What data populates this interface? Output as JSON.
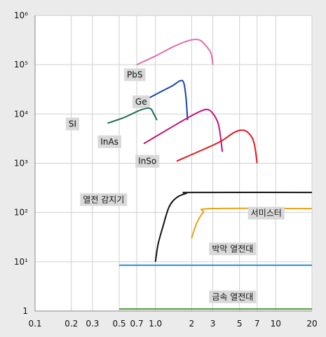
{
  "chart_data": {
    "type": "line",
    "x_scale": "log",
    "y_scale": "log",
    "xlim": [
      0.1,
      20
    ],
    "ylim": [
      1,
      1000000
    ],
    "grid": true,
    "x_tick_values": [
      0.1,
      0.2,
      0.3,
      0.5,
      0.7,
      1.0,
      2,
      3,
      5,
      7,
      10,
      20
    ],
    "x_tick_labels": [
      "0.1",
      "0.2",
      "0.3",
      "0.5",
      "0.7",
      "1.0",
      "2",
      "3",
      "5",
      "7",
      "10",
      "20"
    ],
    "y_tick_values": [
      1,
      10,
      100,
      1000,
      10000,
      100000,
      1000000
    ],
    "y_tick_labels": [
      "1",
      "10¹",
      "10²",
      "10³",
      "10⁴",
      "10⁵",
      "10⁶"
    ],
    "series": [
      {
        "name": "PbS",
        "color": "#dd6fb0",
        "label_x": 0.58,
        "label_y": 55000,
        "points": [
          [
            0.7,
            100000
          ],
          [
            1.0,
            150000
          ],
          [
            1.4,
            230000
          ],
          [
            1.9,
            310000
          ],
          [
            2.3,
            320000
          ],
          [
            2.6,
            250000
          ],
          [
            2.9,
            170000
          ],
          [
            3.0,
            100000
          ]
        ]
      },
      {
        "name": "Ge",
        "color": "#1b44a3",
        "label_x": 0.68,
        "label_y": 15500,
        "points": [
          [
            0.85,
            20000
          ],
          [
            1.1,
            28000
          ],
          [
            1.4,
            38000
          ],
          [
            1.6,
            47000
          ],
          [
            1.72,
            43000
          ],
          [
            1.8,
            20000
          ],
          [
            1.85,
            7500
          ]
        ]
      },
      {
        "name": "SI",
        "color": "#1f6b57",
        "label_x": 0.19,
        "label_y": 5500,
        "points": [
          [
            0.4,
            6500
          ],
          [
            0.55,
            8500
          ],
          [
            0.75,
            12000
          ],
          [
            0.9,
            13000
          ],
          [
            0.97,
            10000
          ],
          [
            1.03,
            7500
          ]
        ]
      },
      {
        "name": "InAs",
        "color": "#c0147e",
        "label_x": 0.35,
        "label_y": 2400,
        "points": [
          [
            0.8,
            2500
          ],
          [
            1.2,
            4500
          ],
          [
            1.8,
            8000
          ],
          [
            2.4,
            11500
          ],
          [
            2.8,
            12000
          ],
          [
            3.2,
            8000
          ],
          [
            3.4,
            5000
          ],
          [
            3.6,
            1700
          ]
        ]
      },
      {
        "name": "InSo",
        "color": "#e01b22",
        "label_x": 0.72,
        "label_y": 960,
        "points": [
          [
            1.5,
            1100
          ],
          [
            2.5,
            1900
          ],
          [
            3.5,
            2800
          ],
          [
            4.5,
            4200
          ],
          [
            5.3,
            4700
          ],
          [
            6.0,
            4000
          ],
          [
            6.6,
            2600
          ],
          [
            7.0,
            1000
          ]
        ]
      },
      {
        "name": "열전 감지기",
        "color": "#111111",
        "label_x": 0.25,
        "label_y": 160,
        "points": [
          [
            1.0,
            10
          ],
          [
            1.05,
            22
          ],
          [
            1.15,
            50
          ],
          [
            1.3,
            130
          ],
          [
            1.5,
            200
          ],
          [
            1.8,
            245
          ],
          [
            2.1,
            255
          ],
          [
            20,
            255
          ]
        ]
      },
      {
        "name": "서미스터",
        "color": "#e6a31a",
        "label_x": 6.2,
        "label_y": 85,
        "points": [
          [
            2.0,
            30
          ],
          [
            2.2,
            60
          ],
          [
            2.5,
            100
          ],
          [
            2.9,
            120
          ],
          [
            20,
            120
          ]
        ]
      },
      {
        "name": "박막 열전대",
        "color": "#2e8fc9",
        "label_x": 2.95,
        "label_y": 16,
        "points": [
          [
            0.5,
            8.5
          ],
          [
            20,
            8.5
          ]
        ]
      },
      {
        "name": "금속 열전대",
        "color": "#4c9a3a",
        "label_x": 2.95,
        "label_y": 1.7,
        "points": [
          [
            0.5,
            1.1
          ],
          [
            20,
            1.1
          ]
        ]
      }
    ]
  }
}
